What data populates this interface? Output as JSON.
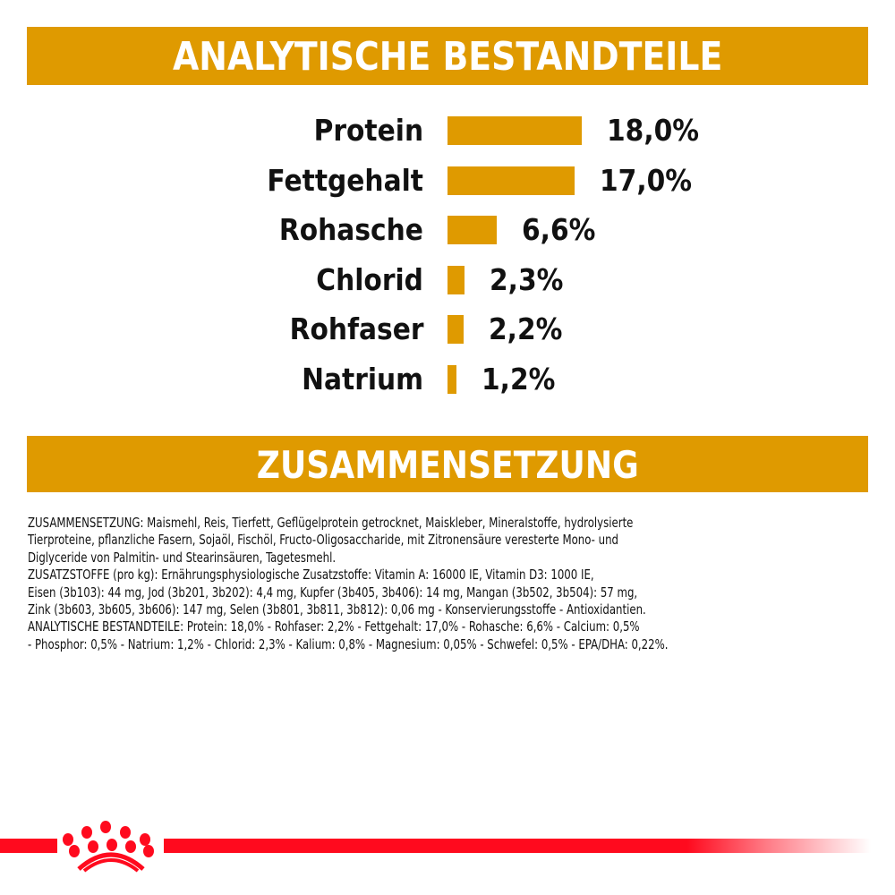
{
  "sections": {
    "analytical_title": "ANALYTISCHE BESTANDTEILE",
    "composition_title": "ZUSAMMENSETZUNG"
  },
  "colors": {
    "accent": "#DF9A00",
    "brand_red": "#FF0A1E",
    "text": "#111111"
  },
  "chart_data": {
    "type": "bar",
    "orientation": "horizontal",
    "title": "ANALYTISCHE BESTANDTEILE",
    "categories": [
      "Protein",
      "Fettgehalt",
      "Rohasche",
      "Chlorid",
      "Rohfaser",
      "Natrium"
    ],
    "values": [
      18.0,
      17.0,
      6.6,
      2.3,
      2.2,
      1.2
    ],
    "value_labels": [
      "18,0%",
      "17,0%",
      "6,6%",
      "2,3%",
      "2,2%",
      "1,2%"
    ],
    "unit": "%",
    "xlabel": "",
    "ylabel": "",
    "grid": false,
    "legend": "none",
    "bar_color": "#DF9A00"
  },
  "composition": {
    "lines": [
      "ZUSAMMENSETZUNG: Maismehl, Reis, Tierfett, Geflügelprotein getrocknet, Maiskleber, Mineralstoffe, hydrolysierte",
      "Tierproteine, pflanzliche Fasern, Sojaöl, Fischöl, Fructo-Oligosaccharide, mit Zitronensäure veresterte Mono- und",
      "Diglyceride von Palmitin- und Stearinsäuren, Tagetesmehl.",
      "ZUSATZSTOFFE (pro kg): Ernährungsphysiologische Zusatzstoffe: Vitamin A: 16000 IE, Vitamin D3: 1000 IE,",
      "Eisen (3b103): 44 mg, Jod (3b201, 3b202): 4,4 mg, Kupfer (3b405, 3b406): 14 mg, Mangan (3b502, 3b504): 57 mg,",
      "Zink (3b603, 3b605, 3b606): 147 mg, Selen (3b801, 3b811, 3b812): 0,06 mg - Konservierungsstoffe - Antioxidantien.",
      "ANALYTISCHE BESTANDTEILE: Protein: 18,0% - Rohfaser: 2,2% - Fettgehalt: 17,0% - Rohasche: 6,6% - Calcium: 0,5%",
      "- Phosphor: 0,5% - Natrium: 1,2% - Chlorid: 2,3% - Kalium: 0,8% - Magnesium: 0,05% - Schwefel: 0,5% - EPA/DHA: 0,22%."
    ]
  },
  "footer": {
    "logo_icon": "crown-icon"
  }
}
